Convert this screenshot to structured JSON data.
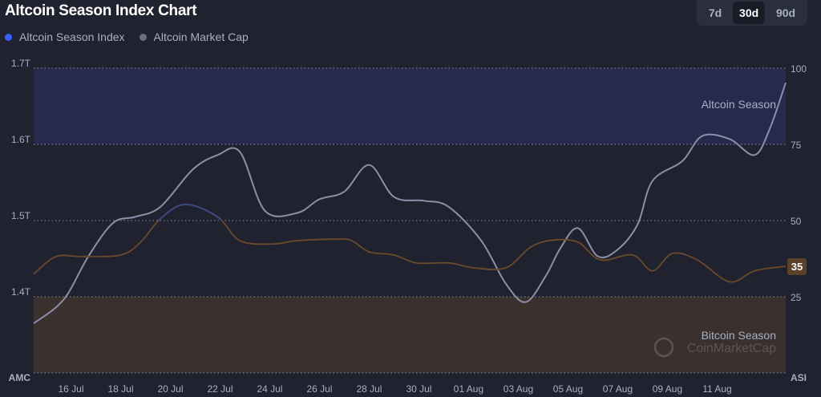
{
  "header": {
    "title": "Altcoin Season Index Chart"
  },
  "legend": [
    {
      "label": "Altcoin Season Index",
      "color": "#3861fb"
    },
    {
      "label": "Altcoin Market Cap",
      "color": "#6b7185"
    }
  ],
  "tabs": [
    {
      "label": "7d",
      "active": false
    },
    {
      "label": "30d",
      "active": true
    },
    {
      "label": "90d",
      "active": false
    }
  ],
  "chart_data": {
    "type": "line",
    "title": "Altcoin Season Index Chart",
    "x_unit": "day (July numbering; 32 = 01 Aug)",
    "xlim": [
      14.5,
      44.76
    ],
    "x_ticks": [
      {
        "day": 16,
        "label": "16 Jul"
      },
      {
        "day": 18,
        "label": "18 Jul"
      },
      {
        "day": 20,
        "label": "20 Jul"
      },
      {
        "day": 22,
        "label": "22 Jul"
      },
      {
        "day": 24,
        "label": "24 Jul"
      },
      {
        "day": 26,
        "label": "26 Jul"
      },
      {
        "day": 28,
        "label": "28 Jul"
      },
      {
        "day": 30,
        "label": "30 Jul"
      },
      {
        "day": 32,
        "label": "01 Aug"
      },
      {
        "day": 34,
        "label": "03 Aug"
      },
      {
        "day": 36,
        "label": "05 Aug"
      },
      {
        "day": 38,
        "label": "07 Aug"
      },
      {
        "day": 40,
        "label": "09 Aug"
      },
      {
        "day": 42,
        "label": "11 Aug"
      }
    ],
    "left_axis": {
      "label": "AMC",
      "ylim": [
        1.3,
        1.7
      ],
      "ticks": [
        {
          "v": 1.7,
          "label": "1.7T"
        },
        {
          "v": 1.6,
          "label": "1.6T"
        },
        {
          "v": 1.5,
          "label": "1.5T"
        },
        {
          "v": 1.4,
          "label": "1.4T"
        }
      ]
    },
    "right_axis": {
      "label": "ASI",
      "ylim": [
        0,
        100
      ],
      "ticks": [
        {
          "v": 100,
          "label": "100"
        },
        {
          "v": 75,
          "label": "75"
        },
        {
          "v": 50,
          "label": "50"
        },
        {
          "v": 25,
          "label": "25"
        }
      ]
    },
    "bands": [
      {
        "label": "Altcoin Season",
        "from": 75,
        "to": 100,
        "color": "#262a4c"
      },
      {
        "label": "Bitcoin Season",
        "from": 0,
        "to": 25,
        "color": "#3a302e"
      }
    ],
    "current_value_label": "35",
    "watermark": "CoinMarketCap",
    "series": [
      {
        "name": "Altcoin Market Cap",
        "axis": "left",
        "color": "#8a90a8",
        "points": [
          [
            14.5,
            1.365
          ],
          [
            15.7,
            1.396
          ],
          [
            16.7,
            1.453
          ],
          [
            17.7,
            1.497
          ],
          [
            18.6,
            1.505
          ],
          [
            19.6,
            1.518
          ],
          [
            20.9,
            1.567
          ],
          [
            21.9,
            1.586
          ],
          [
            22.8,
            1.59
          ],
          [
            23.8,
            1.513
          ],
          [
            25.1,
            1.51
          ],
          [
            26.0,
            1.528
          ],
          [
            27.0,
            1.538
          ],
          [
            28.0,
            1.573
          ],
          [
            29.0,
            1.531
          ],
          [
            30.2,
            1.526
          ],
          [
            31.2,
            1.518
          ],
          [
            32.5,
            1.474
          ],
          [
            33.5,
            1.417
          ],
          [
            34.3,
            1.393
          ],
          [
            35.1,
            1.427
          ],
          [
            35.7,
            1.464
          ],
          [
            36.4,
            1.49
          ],
          [
            37.2,
            1.453
          ],
          [
            38.0,
            1.462
          ],
          [
            38.8,
            1.495
          ],
          [
            39.4,
            1.552
          ],
          [
            40.6,
            1.578
          ],
          [
            41.4,
            1.611
          ],
          [
            42.5,
            1.607
          ],
          [
            43.5,
            1.586
          ],
          [
            44.1,
            1.619
          ],
          [
            44.76,
            1.681
          ]
        ]
      },
      {
        "name": "Altcoin Season Index",
        "axis": "right",
        "color": "#6b4a2c",
        "points": [
          [
            14.5,
            32.5
          ],
          [
            15.4,
            38.2
          ],
          [
            16.4,
            38.2
          ],
          [
            18.0,
            38.7
          ],
          [
            18.8,
            42.9
          ],
          [
            19.6,
            50.6
          ],
          [
            20.6,
            55.3
          ],
          [
            21.9,
            51.2
          ],
          [
            22.8,
            43.4
          ],
          [
            24.1,
            42.3
          ],
          [
            25.1,
            43.4
          ],
          [
            26.7,
            43.9
          ],
          [
            27.3,
            43.4
          ],
          [
            28.0,
            39.7
          ],
          [
            29.0,
            38.7
          ],
          [
            29.9,
            36.1
          ],
          [
            31.2,
            36.1
          ],
          [
            32.2,
            34.5
          ],
          [
            33.5,
            34.5
          ],
          [
            34.5,
            41.3
          ],
          [
            35.4,
            43.6
          ],
          [
            36.4,
            42.9
          ],
          [
            37.3,
            37.1
          ],
          [
            38.6,
            38.7
          ],
          [
            39.4,
            33.5
          ],
          [
            40.2,
            39.2
          ],
          [
            41.2,
            37.1
          ],
          [
            42.5,
            29.9
          ],
          [
            43.5,
            33.5
          ],
          [
            44.76,
            35
          ]
        ]
      }
    ]
  }
}
